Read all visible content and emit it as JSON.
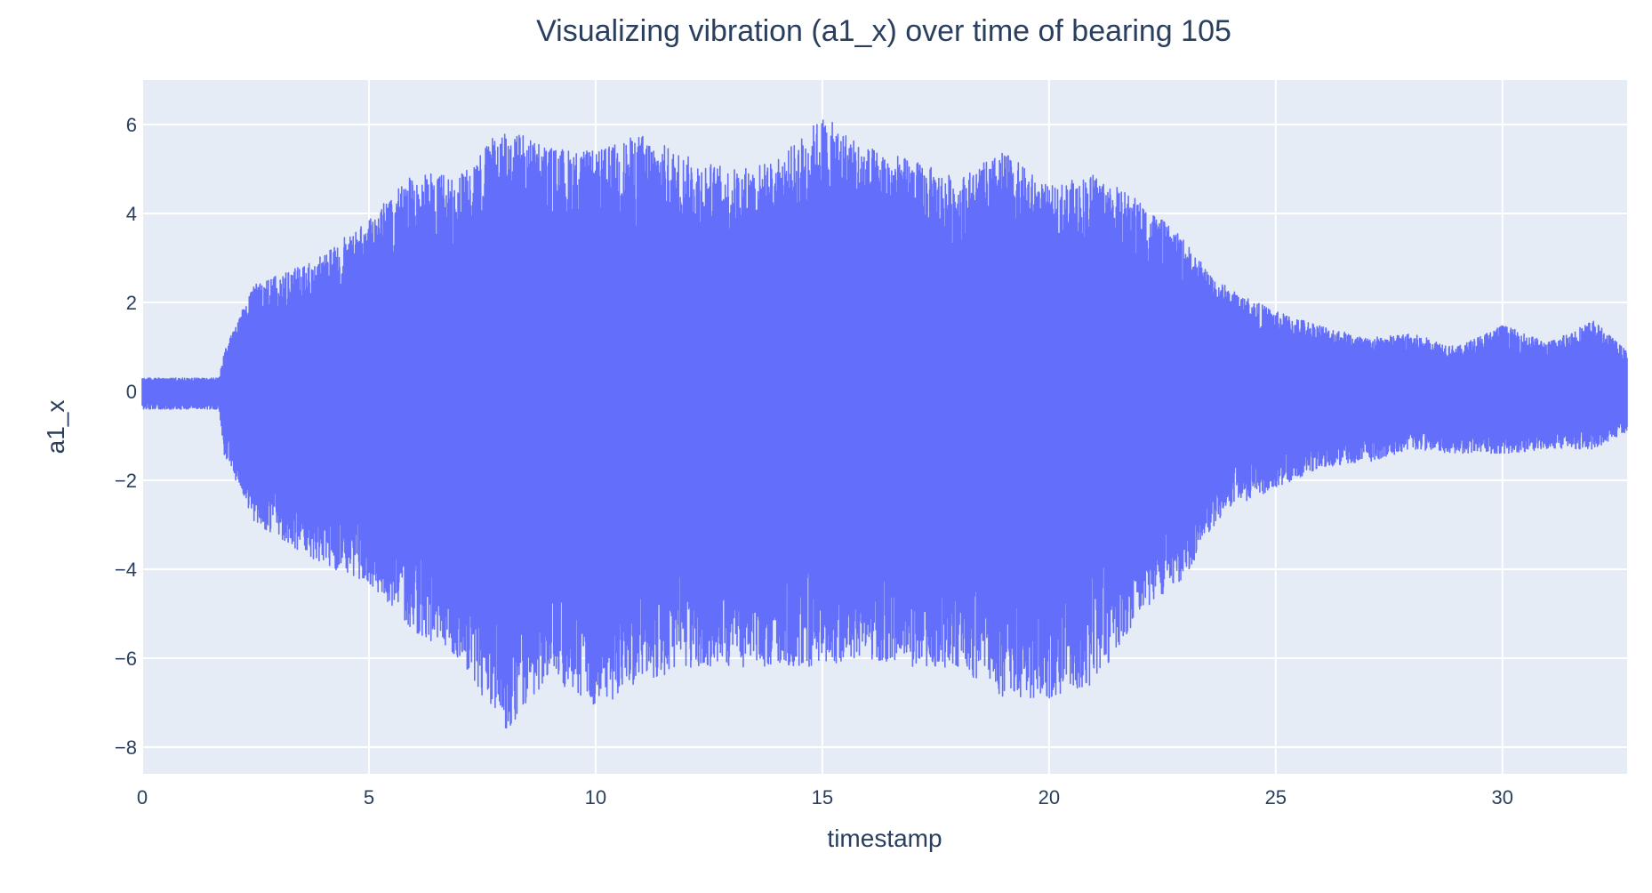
{
  "chart_data": {
    "type": "line",
    "title": "Visualizing vibration (a1_x) over time of bearing 105",
    "xlabel": "timestamp",
    "ylabel": "a1_x",
    "xlim": [
      0,
      32.75
    ],
    "ylim": [
      -8.6,
      7.0
    ],
    "grid": true,
    "legend": "none",
    "x_ticks": [
      0,
      5,
      10,
      15,
      20,
      25,
      30
    ],
    "x_tick_labels": [
      "0",
      "5",
      "10",
      "15",
      "20",
      "25",
      "30"
    ],
    "y_ticks": [
      -8,
      -6,
      -4,
      -2,
      0,
      2,
      4,
      6
    ],
    "y_tick_labels": [
      "−8",
      "−6",
      "−4",
      "−2",
      "0",
      "2",
      "4",
      "6"
    ],
    "series": [
      {
        "line_color": "#636efa",
        "description_envelope": {
          "x": [
            0,
            1.7,
            1.8,
            2.5,
            3,
            4,
            5,
            6,
            7,
            8,
            9,
            10,
            11,
            12,
            13,
            14,
            15,
            16,
            17,
            18,
            19,
            20,
            21,
            22,
            23,
            23.5,
            24,
            25,
            26,
            27,
            28,
            29,
            30,
            31,
            32,
            32.75
          ],
          "upper": [
            0.3,
            0.3,
            0.9,
            2.5,
            2.6,
            3.1,
            3.9,
            4.9,
            4.9,
            6.0,
            5.5,
            5.4,
            5.8,
            5.3,
            5.0,
            5.2,
            6.2,
            5.5,
            5.2,
            4.8,
            5.4,
            4.6,
            4.9,
            4.3,
            3.4,
            2.7,
            2.3,
            1.8,
            1.5,
            1.2,
            1.3,
            1.0,
            1.5,
            1.1,
            1.6,
            0.9
          ],
          "lower": [
            -0.4,
            -0.4,
            -1.4,
            -3.0,
            -3.3,
            -3.9,
            -4.3,
            -5.4,
            -6.0,
            -7.7,
            -6.4,
            -7.2,
            -6.5,
            -6.3,
            -6.2,
            -6.2,
            -6.2,
            -6.0,
            -6.2,
            -6.2,
            -6.9,
            -6.9,
            -6.6,
            -5.0,
            -4.2,
            -3.2,
            -2.6,
            -2.2,
            -1.7,
            -1.6,
            -1.3,
            -1.4,
            -1.4,
            -1.3,
            -1.3,
            -0.9
          ]
        }
      }
    ]
  }
}
